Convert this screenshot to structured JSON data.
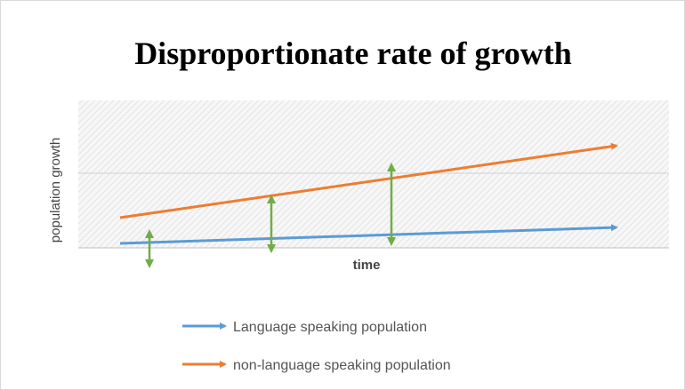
{
  "title": "Disproportionate rate of growth",
  "x_axis_label": "time",
  "y_axis_label": "population growth",
  "legend": [
    {
      "label": "Language speaking population",
      "color": "#5b9bd5"
    },
    {
      "label": "non-language speaking population",
      "color": "#ed7d31"
    }
  ]
}
